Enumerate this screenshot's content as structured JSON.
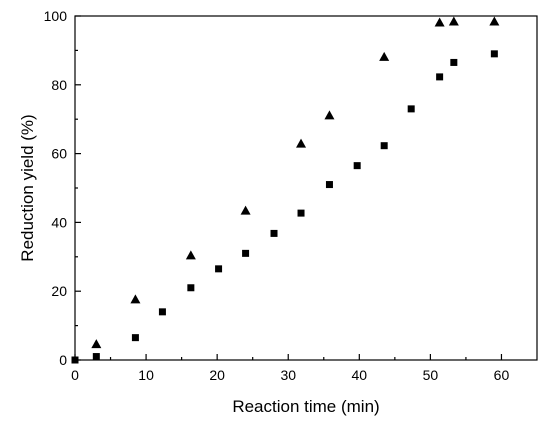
{
  "chart_data": {
    "type": "scatter",
    "title": "",
    "xlabel": "Reaction time (min)",
    "ylabel": "Reduction yield (%)",
    "xlim": [
      0,
      65
    ],
    "ylim": [
      0,
      100
    ],
    "xticks": [
      0,
      10,
      20,
      30,
      40,
      50,
      60
    ],
    "yticks": [
      0,
      20,
      40,
      60,
      80,
      100
    ],
    "grid": false,
    "legend": "none",
    "series": [
      {
        "marker": "triangle",
        "color": "#000000",
        "points": [
          [
            3,
            4.5
          ],
          [
            8.5,
            17.5
          ],
          [
            16.3,
            30.3
          ],
          [
            24,
            43.3
          ],
          [
            31.8,
            62.8
          ],
          [
            35.8,
            71
          ],
          [
            43.5,
            88
          ],
          [
            51.3,
            98
          ],
          [
            53.3,
            98.3
          ],
          [
            59,
            98.3
          ]
        ]
      },
      {
        "marker": "square",
        "color": "#000000",
        "points": [
          [
            0,
            0
          ],
          [
            3,
            1
          ],
          [
            8.5,
            6.5
          ],
          [
            12.3,
            14
          ],
          [
            16.3,
            21
          ],
          [
            20.2,
            26.5
          ],
          [
            24,
            31
          ],
          [
            28,
            36.8
          ],
          [
            31.8,
            42.7
          ],
          [
            35.8,
            51
          ],
          [
            39.7,
            56.5
          ],
          [
            43.5,
            62.3
          ],
          [
            47.3,
            73
          ],
          [
            51.3,
            82.3
          ],
          [
            53.3,
            86.5
          ],
          [
            59,
            89
          ]
        ]
      }
    ]
  }
}
